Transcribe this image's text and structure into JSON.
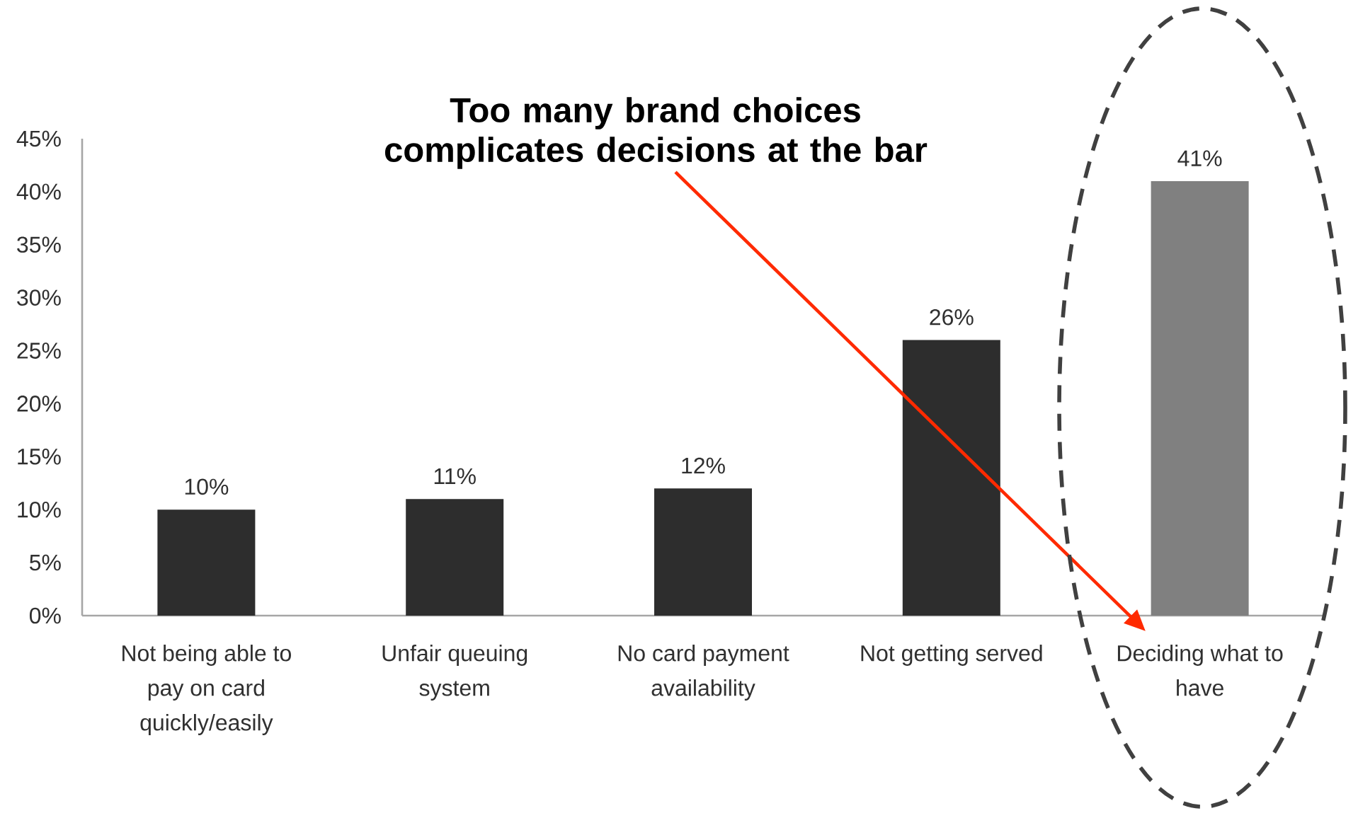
{
  "chart_data": {
    "type": "bar",
    "categories": [
      "Not being able to pay on card quickly/easily",
      "Unfair queuing system",
      "No card payment availability",
      "Not getting served",
      "Deciding what to have"
    ],
    "values": [
      10,
      11,
      12,
      26,
      41
    ],
    "colors": [
      "#2d2d2d",
      "#2d2d2d",
      "#2d2d2d",
      "#2d2d2d",
      "#808080"
    ],
    "value_labels": [
      "10%",
      "11%",
      "12%",
      "26%",
      "41%"
    ],
    "ylim": [
      0,
      45
    ],
    "yticks": [
      {
        "value": 0,
        "label": "0%"
      },
      {
        "value": 5,
        "label": "5%"
      },
      {
        "value": 10,
        "label": "10%"
      },
      {
        "value": 15,
        "label": "15%"
      },
      {
        "value": 20,
        "label": "20%"
      },
      {
        "value": 25,
        "label": "25%"
      },
      {
        "value": 30,
        "label": "30%"
      },
      {
        "value": 35,
        "label": "35%"
      },
      {
        "value": 40,
        "label": "40%"
      },
      {
        "value": 45,
        "label": "45%"
      }
    ],
    "annotations": [
      "Too many brand choices complicates decisions at the bar"
    ]
  }
}
